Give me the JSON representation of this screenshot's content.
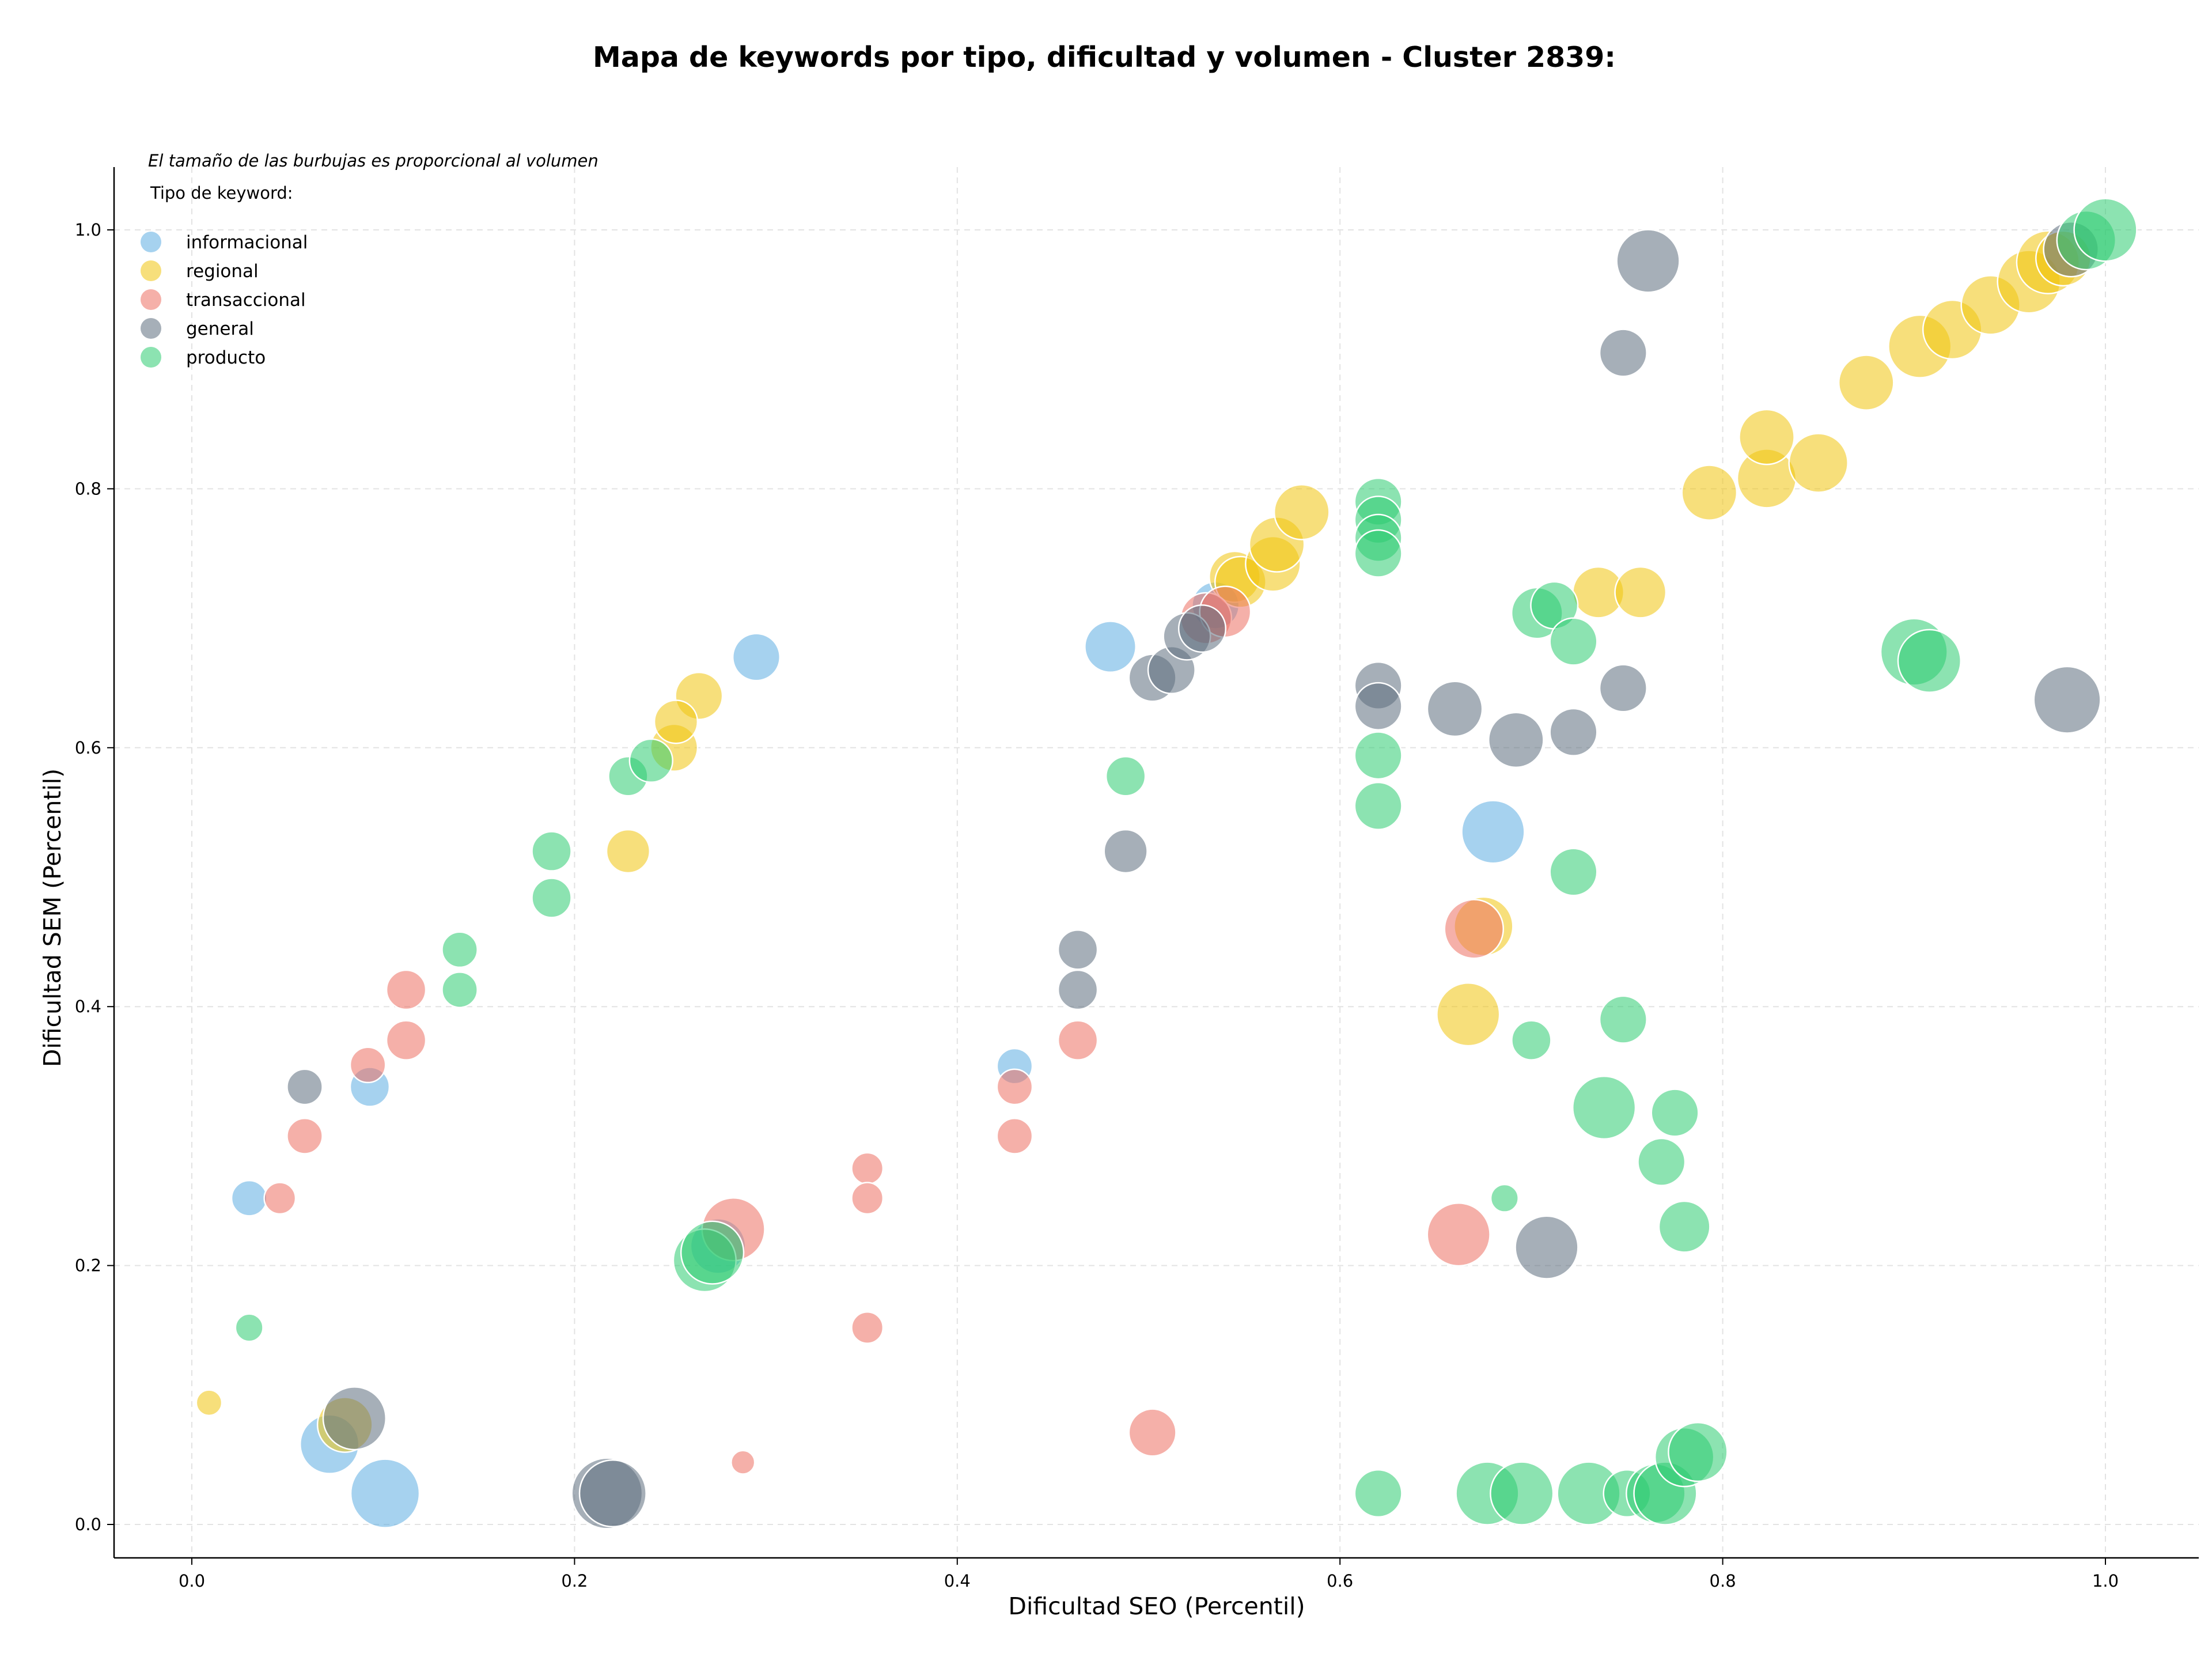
{
  "chart_data": {
    "type": "scatter",
    "title": "Mapa de keywords por tipo, dificultad y volumen - Cluster 2839:",
    "xlabel": "Dificultad SEO (Percentil)",
    "ylabel": "Dificultad SEM (Percentil)",
    "xlim": [
      -0.04,
      1.05
    ],
    "ylim": [
      -0.025,
      1.05
    ],
    "xticks": [
      0.0,
      0.2,
      0.4,
      0.6,
      0.8,
      1.0
    ],
    "yticks": [
      0.0,
      0.2,
      0.4,
      0.6,
      0.8,
      1.0
    ],
    "xtick_labels": [
      "0.0",
      "0.2",
      "0.4",
      "0.6",
      "0.8",
      "1.0"
    ],
    "ytick_labels": [
      "0.0",
      "0.2",
      "0.4",
      "0.6",
      "0.8",
      "1.0"
    ],
    "grid": true,
    "annotation": "El tamaño de las burbujas es proporcional al volumen",
    "legend_title": "Tipo de keyword:",
    "legend_position": "top-left",
    "series": [
      {
        "name": "informacional",
        "color": "#5dade2",
        "points": [
          [
            0.03,
            0.252,
            18
          ],
          [
            0.093,
            0.338,
            20
          ],
          [
            0.072,
            0.062,
            30
          ],
          [
            0.101,
            0.024,
            35
          ],
          [
            0.295,
            0.67,
            24
          ],
          [
            0.48,
            0.678,
            26
          ],
          [
            0.43,
            0.354,
            18
          ],
          [
            0.68,
            0.535,
            32
          ],
          [
            0.535,
            0.71,
            24
          ],
          [
            0.275,
            0.215,
            28
          ]
        ]
      },
      {
        "name": "regional",
        "color": "#f1c40f",
        "points": [
          [
            0.009,
            0.094,
            13
          ],
          [
            0.08,
            0.077,
            28
          ],
          [
            0.228,
            0.52,
            22
          ],
          [
            0.265,
            0.64,
            24
          ],
          [
            0.252,
            0.6,
            24
          ],
          [
            0.253,
            0.62,
            22
          ],
          [
            0.545,
            0.732,
            26
          ],
          [
            0.548,
            0.728,
            26
          ],
          [
            0.565,
            0.742,
            28
          ],
          [
            0.567,
            0.757,
            28
          ],
          [
            0.58,
            0.782,
            28
          ],
          [
            0.667,
            0.394,
            32
          ],
          [
            0.675,
            0.462,
            30
          ],
          [
            0.735,
            0.72,
            26
          ],
          [
            0.757,
            0.72,
            26
          ],
          [
            0.793,
            0.797,
            28
          ],
          [
            0.823,
            0.808,
            30
          ],
          [
            0.823,
            0.84,
            28
          ],
          [
            0.85,
            0.82,
            30
          ],
          [
            0.875,
            0.882,
            28
          ],
          [
            0.903,
            0.91,
            32
          ],
          [
            0.92,
            0.923,
            30
          ],
          [
            0.94,
            0.942,
            30
          ],
          [
            0.96,
            0.96,
            32
          ],
          [
            0.97,
            0.975,
            32
          ],
          [
            0.978,
            0.978,
            28
          ]
        ]
      },
      {
        "name": "transaccional",
        "color": "#ec7063",
        "points": [
          [
            0.046,
            0.252,
            16
          ],
          [
            0.059,
            0.3,
            18
          ],
          [
            0.092,
            0.355,
            18
          ],
          [
            0.112,
            0.413,
            20
          ],
          [
            0.112,
            0.374,
            20
          ],
          [
            0.283,
            0.228,
            32
          ],
          [
            0.288,
            0.048,
            12
          ],
          [
            0.353,
            0.275,
            16
          ],
          [
            0.353,
            0.152,
            16
          ],
          [
            0.43,
            0.3,
            18
          ],
          [
            0.43,
            0.338,
            18
          ],
          [
            0.463,
            0.374,
            20
          ],
          [
            0.502,
            0.071,
            24
          ],
          [
            0.53,
            0.7,
            26
          ],
          [
            0.54,
            0.705,
            26
          ],
          [
            0.662,
            0.224,
            32
          ],
          [
            0.67,
            0.46,
            30
          ],
          [
            0.353,
            0.252,
            16
          ]
        ]
      },
      {
        "name": "general",
        "color": "#5d6d7e",
        "points": [
          [
            0.059,
            0.338,
            18
          ],
          [
            0.085,
            0.082,
            32
          ],
          [
            0.217,
            0.024,
            36
          ],
          [
            0.22,
            0.024,
            34
          ],
          [
            0.463,
            0.444,
            20
          ],
          [
            0.463,
            0.413,
            20
          ],
          [
            0.488,
            0.52,
            22
          ],
          [
            0.502,
            0.654,
            24
          ],
          [
            0.512,
            0.66,
            24
          ],
          [
            0.52,
            0.686,
            24
          ],
          [
            0.528,
            0.692,
            24
          ],
          [
            0.62,
            0.648,
            24
          ],
          [
            0.62,
            0.632,
            24
          ],
          [
            0.66,
            0.63,
            28
          ],
          [
            0.692,
            0.606,
            28
          ],
          [
            0.708,
            0.214,
            32
          ],
          [
            0.748,
            0.905,
            24
          ],
          [
            0.748,
            0.646,
            24
          ],
          [
            0.761,
            0.976,
            32
          ],
          [
            0.98,
            0.637,
            34
          ],
          [
            0.982,
            0.985,
            28
          ],
          [
            0.722,
            0.612,
            24
          ]
        ]
      },
      {
        "name": "producto",
        "color": "#2ecc71",
        "points": [
          [
            0.03,
            0.152,
            14
          ],
          [
            0.14,
            0.444,
            18
          ],
          [
            0.14,
            0.413,
            18
          ],
          [
            0.188,
            0.52,
            20
          ],
          [
            0.188,
            0.484,
            20
          ],
          [
            0.228,
            0.578,
            20
          ],
          [
            0.24,
            0.59,
            22
          ],
          [
            0.268,
            0.204,
            32
          ],
          [
            0.272,
            0.21,
            32
          ],
          [
            0.488,
            0.578,
            20
          ],
          [
            0.62,
            0.79,
            24
          ],
          [
            0.62,
            0.776,
            24
          ],
          [
            0.62,
            0.762,
            24
          ],
          [
            0.62,
            0.75,
            24
          ],
          [
            0.62,
            0.594,
            24
          ],
          [
            0.62,
            0.555,
            24
          ],
          [
            0.62,
            0.024,
            24
          ],
          [
            0.677,
            0.024,
            32
          ],
          [
            0.695,
            0.024,
            32
          ],
          [
            0.686,
            0.252,
            14
          ],
          [
            0.7,
            0.374,
            20
          ],
          [
            0.703,
            0.704,
            26
          ],
          [
            0.712,
            0.71,
            24
          ],
          [
            0.722,
            0.682,
            24
          ],
          [
            0.722,
            0.504,
            24
          ],
          [
            0.73,
            0.024,
            32
          ],
          [
            0.738,
            0.322,
            32
          ],
          [
            0.748,
            0.39,
            24
          ],
          [
            0.75,
            0.024,
            24
          ],
          [
            0.765,
            0.024,
            30
          ],
          [
            0.768,
            0.28,
            24
          ],
          [
            0.775,
            0.318,
            24
          ],
          [
            0.77,
            0.024,
            32
          ],
          [
            0.78,
            0.23,
            26
          ],
          [
            0.78,
            0.052,
            30
          ],
          [
            0.787,
            0.056,
            30
          ],
          [
            0.9,
            0.674,
            34
          ],
          [
            0.908,
            0.667,
            32
          ],
          [
            0.99,
            0.992,
            30
          ],
          [
            1.0,
            1.0,
            32
          ]
        ]
      }
    ]
  }
}
